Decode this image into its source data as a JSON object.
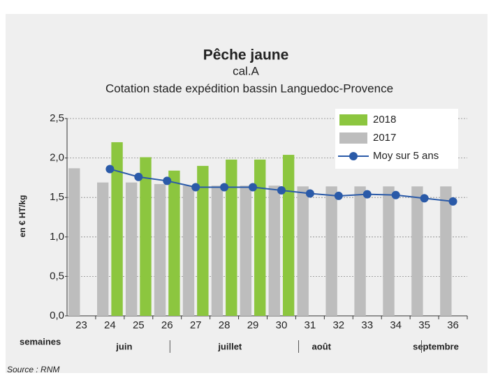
{
  "chart_data": {
    "type": "bar",
    "title": "Pêche jaune",
    "subtitle": "cal.A",
    "subtitle2": "Cotation stade expédition bassin Languedoc-Provence",
    "ylabel": "en € HT/kg",
    "xlabel": "semaines",
    "months": [
      "juin",
      "juillet",
      "août",
      "septembre"
    ],
    "source": "Source : RNM",
    "categories": [
      "23",
      "24",
      "25",
      "26",
      "27",
      "28",
      "29",
      "30",
      "31",
      "32",
      "33",
      "34",
      "35",
      "36"
    ],
    "series": [
      {
        "name": "2018",
        "color": "#8cc63f",
        "type": "bar",
        "values": [
          null,
          2.2,
          2.01,
          1.84,
          1.9,
          1.98,
          1.98,
          2.04,
          null,
          null,
          null,
          null,
          null,
          null
        ]
      },
      {
        "name": "2017",
        "color": "#bdbdbd",
        "type": "bar",
        "values": [
          1.87,
          1.69,
          1.69,
          1.67,
          1.65,
          1.65,
          1.65,
          1.65,
          1.64,
          1.64,
          1.64,
          1.64,
          1.64,
          1.64
        ]
      },
      {
        "name": "Moy sur 5 ans",
        "color": "#2a5aa8",
        "type": "line",
        "values": [
          null,
          1.86,
          1.76,
          1.71,
          1.63,
          1.63,
          1.63,
          1.59,
          1.55,
          1.52,
          1.54,
          1.53,
          1.49,
          1.45
        ]
      }
    ],
    "ylim": [
      0,
      2.5
    ],
    "yticks": [
      {
        "value": 0,
        "label": "0,0"
      },
      {
        "value": 0.5,
        "label": "0,5"
      },
      {
        "value": 1,
        "label": "1,0"
      },
      {
        "value": 1.5,
        "label": "1,5"
      },
      {
        "value": 2,
        "label": "2,0"
      },
      {
        "value": 2.5,
        "label": "2,5"
      }
    ],
    "grid": true,
    "legend": "upper right"
  }
}
